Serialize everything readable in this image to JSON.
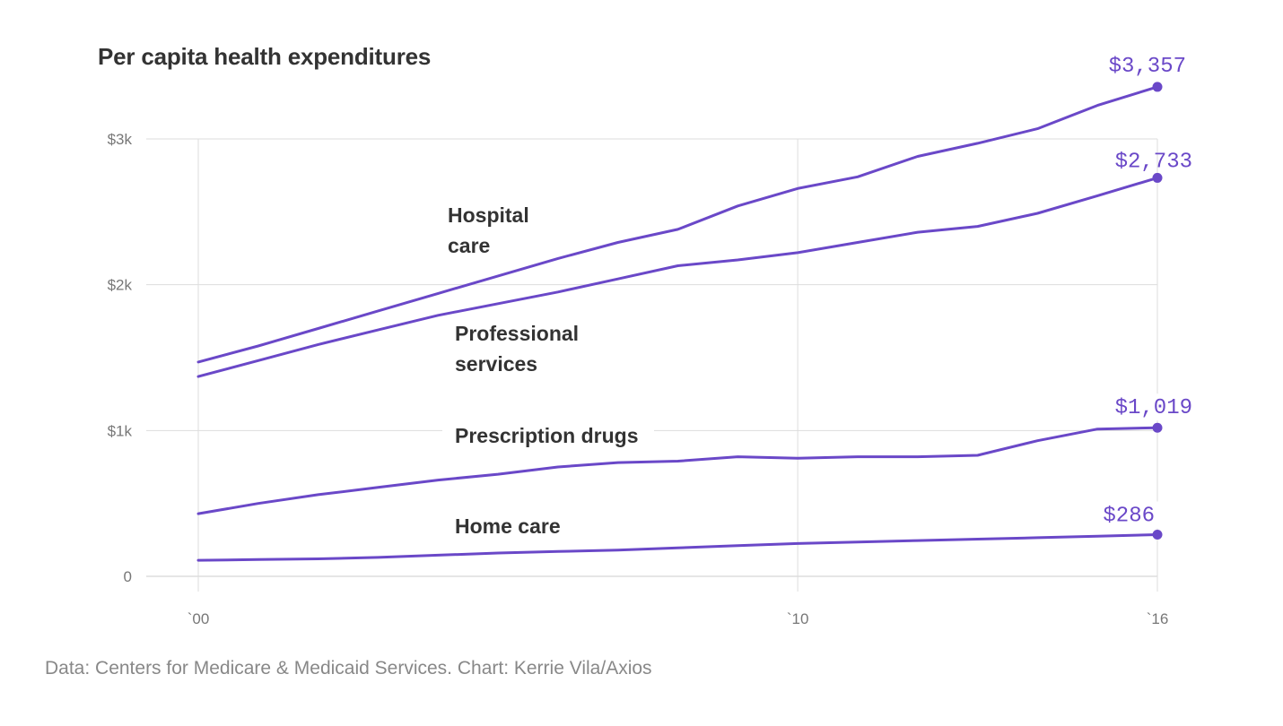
{
  "title": "Per capita health expenditures",
  "source": "Data: Centers for Medicare & Medicaid Services. Chart: Kerrie Vila/Axios",
  "chart_data": {
    "type": "line",
    "title": "Per capita health expenditures",
    "xlabel": "",
    "ylabel": "",
    "x": [
      2000,
      2001,
      2002,
      2003,
      2004,
      2005,
      2006,
      2007,
      2008,
      2009,
      2010,
      2011,
      2012,
      2013,
      2014,
      2015,
      2016
    ],
    "xlim": [
      2000,
      2016
    ],
    "ylim": [
      0,
      3000
    ],
    "x_ticks": [
      {
        "value": 2000,
        "label": "`00"
      },
      {
        "value": 2010,
        "label": "`10"
      },
      {
        "value": 2016,
        "label": "`16"
      }
    ],
    "y_ticks": [
      {
        "value": 0,
        "label": "0"
      },
      {
        "value": 1000,
        "label": "$1k"
      },
      {
        "value": 2000,
        "label": "$2k"
      },
      {
        "value": 3000,
        "label": "$3k"
      }
    ],
    "grid": true,
    "color": "#6a48c8",
    "series": [
      {
        "name": "Hospital\ncare",
        "values": [
          1470,
          1580,
          1700,
          1820,
          1940,
          2060,
          2180,
          2290,
          2380,
          2540,
          2660,
          2740,
          2880,
          2970,
          3070,
          3230,
          3357
        ],
        "end_label": "$3,357"
      },
      {
        "name": "Professional\nservices",
        "values": [
          1370,
          1480,
          1590,
          1690,
          1790,
          1870,
          1950,
          2040,
          2130,
          2170,
          2220,
          2290,
          2360,
          2400,
          2490,
          2610,
          2733
        ],
        "end_label": "$2,733"
      },
      {
        "name": "Prescription drugs",
        "values": [
          430,
          500,
          560,
          610,
          660,
          700,
          750,
          780,
          790,
          820,
          810,
          820,
          820,
          830,
          930,
          1010,
          1019
        ],
        "end_label": "$1,019"
      },
      {
        "name": "Home care",
        "values": [
          110,
          115,
          120,
          130,
          145,
          160,
          170,
          180,
          195,
          210,
          225,
          235,
          245,
          255,
          265,
          275,
          286
        ],
        "end_label": "$286"
      }
    ]
  }
}
